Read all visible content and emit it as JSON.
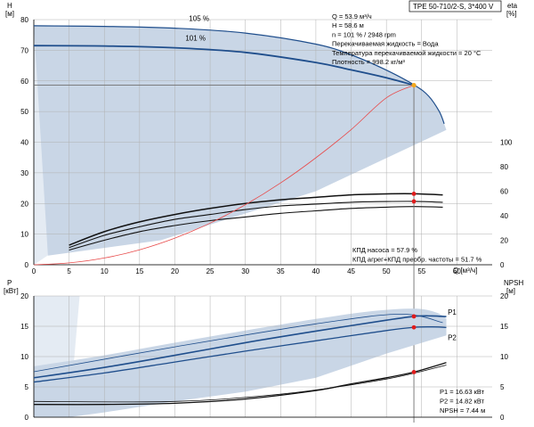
{
  "header": {
    "model": "TPE 50-710/2-S, 3*400 V"
  },
  "duty_point_info": [
    "Q = 53.9 м³/ч",
    "H = 58.6 м",
    "n = 101 % / 2948 rpm",
    "Перекачиваемая жидкость = Вода",
    "Температура перекачиваемой жидкости = 20 °C",
    "Плотность = 998.2 кг/м³"
  ],
  "efficiency_info": [
    "КПД насоса = 57.9 %",
    "КПД агрег+КПД преобр. частоты = 51.7 %"
  ],
  "power_info": [
    "P1 = 16.63 кВт",
    "P2 = 14.82 кВт",
    "NPSH = 7.44 м"
  ],
  "colors": {
    "grid": "#b0b0b0",
    "area": "#c9d6e6",
    "area_light": "#e4ebf3",
    "curve_main": "#1f4e8c",
    "curve_dark": "#111111",
    "system_curve": "#e84a4a",
    "duty_line": "#707070",
    "duty_marker": "#f2a81d",
    "red_marker": "#e01b1b"
  },
  "chart_data": [
    {
      "type": "line",
      "title": "",
      "xlabel": "Q [м³/ч]",
      "ylabel": "H [м]",
      "y2label": "eta [%]",
      "xlim": [
        0,
        65
      ],
      "ylim": [
        0,
        80
      ],
      "y2lim": [
        0,
        200
      ],
      "x_ticks": [
        0,
        5,
        10,
        15,
        20,
        25,
        30,
        35,
        40,
        45,
        50,
        55,
        60
      ],
      "y_ticks": [
        0,
        10,
        20,
        30,
        40,
        50,
        60,
        70,
        80
      ],
      "y2_ticks": [
        0,
        20,
        40,
        60,
        80,
        100
      ],
      "duty_point": {
        "x": 53.9,
        "y": 58.6
      },
      "efficiency_points": [
        {
          "x": 53.9,
          "eta": 57.9
        },
        {
          "x": 53.9,
          "eta": 51.7
        }
      ],
      "series": [
        {
          "name": "105 %",
          "x": [
            0,
            10,
            20,
            30,
            40,
            45,
            50,
            54,
            56,
            57.5,
            58.2
          ],
          "y": [
            78,
            77.8,
            77.2,
            75.6,
            72,
            68.5,
            63.5,
            58.6,
            55,
            50,
            46
          ]
        },
        {
          "name": "101 %",
          "x": [
            0,
            10,
            20,
            30,
            40,
            45,
            50,
            53.9
          ],
          "y": [
            71.5,
            71.4,
            70.8,
            69.3,
            66,
            63.6,
            61,
            58.6
          ]
        },
        {
          "name": "",
          "x": [
            0,
            5,
            10,
            15,
            20,
            25,
            30,
            35,
            40,
            45,
            50,
            53.9
          ],
          "y": [
            0,
            0.6,
            2.2,
            4.9,
            8.7,
            13.6,
            19.6,
            26.7,
            34.9,
            44.1,
            54.5,
            58.6
          ]
        }
      ],
      "eta_series": [
        {
          "x": [
            5,
            10,
            15,
            20,
            25,
            30,
            35,
            40,
            45,
            50,
            54,
            58
          ],
          "eta": [
            16,
            27,
            35,
            41,
            46,
            50,
            53,
            55,
            57,
            57.8,
            57.9,
            57
          ]
        },
        {
          "x": [
            5,
            10,
            15,
            20,
            25,
            30,
            35,
            40,
            45,
            50,
            54,
            58
          ],
          "eta": [
            14,
            24,
            31,
            37,
            41,
            45,
            48,
            49.5,
            51,
            51.6,
            51.7,
            51
          ]
        },
        {
          "x": [
            5,
            10,
            15,
            20,
            25,
            30,
            35,
            40,
            45,
            50,
            54,
            58
          ],
          "eta": [
            12,
            20,
            27,
            32,
            36,
            39,
            42,
            44,
            46,
            47,
            47.5,
            47
          ]
        }
      ]
    },
    {
      "type": "line",
      "title": "",
      "xlabel": "Q [м³/ч]",
      "ylabel": "P [кВт]",
      "y2label": "NPSH [м]",
      "xlim": [
        0,
        65
      ],
      "ylim": [
        0,
        20
      ],
      "x_ticks": [
        0,
        5,
        10,
        15,
        20,
        25,
        30,
        35,
        40,
        45,
        50,
        55,
        60
      ],
      "y_ticks": [
        0,
        5,
        10,
        15,
        20
      ],
      "y2_ticks": [
        0,
        5,
        10,
        15,
        20
      ],
      "series": [
        {
          "name": "P1",
          "x": [
            0,
            10,
            20,
            30,
            40,
            50,
            53.9,
            56.5,
            58.5
          ],
          "y": [
            6.5,
            8.2,
            10.2,
            12.3,
            14.2,
            16.0,
            16.63,
            16.7,
            16.6
          ]
        },
        {
          "name": "P2",
          "x": [
            0,
            10,
            20,
            30,
            40,
            50,
            53.9,
            56.5,
            58.5
          ],
          "y": [
            5.8,
            7.3,
            9.1,
            10.9,
            12.6,
            14.3,
            14.82,
            14.9,
            14.8
          ]
        },
        {
          "name": "NPSH",
          "x": [
            0,
            10,
            20,
            30,
            40,
            45,
            50,
            53.9,
            58.5
          ],
          "y": [
            2.1,
            2.1,
            2.3,
            3.0,
            4.4,
            5.5,
            6.5,
            7.44,
            9.0
          ]
        }
      ],
      "duty_markers": [
        {
          "x": 53.9,
          "y": 16.63
        },
        {
          "x": 53.9,
          "y": 14.82
        },
        {
          "x": 53.9,
          "y": 7.44
        }
      ]
    }
  ]
}
